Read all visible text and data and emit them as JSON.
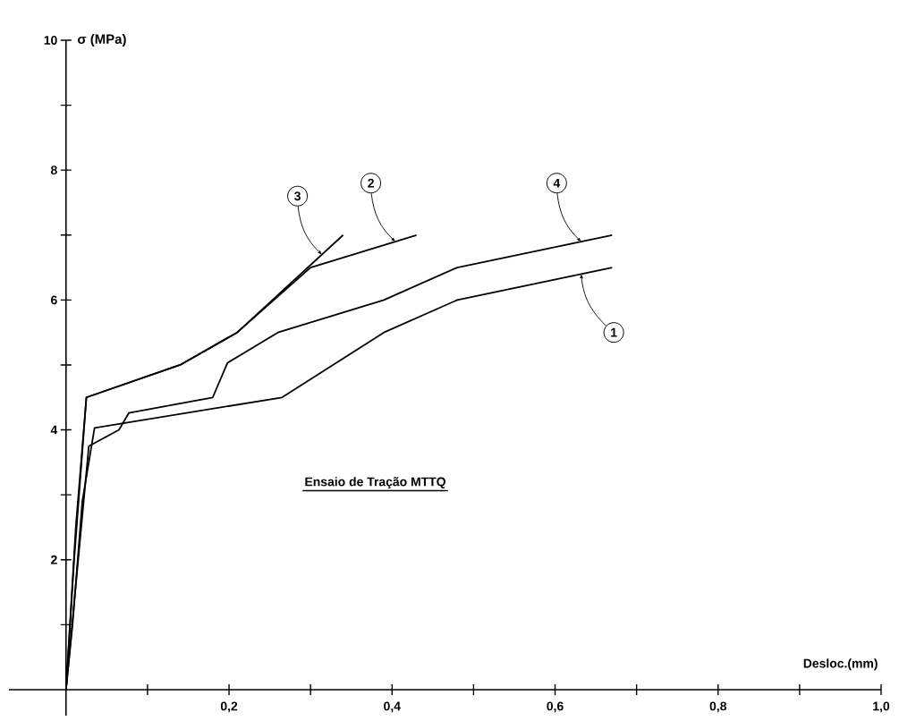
{
  "chart_data": {
    "type": "line",
    "xlabel": "Desloc.(mm)",
    "ylabel": "σ (MPa)",
    "annotations": [
      "Ensaio de Tração MTTQ"
    ],
    "xlim": [
      -0.07,
      1.0
    ],
    "ylim": [
      -0.4,
      10
    ],
    "xticks": [
      {
        "value": 0.1,
        "label": null
      },
      {
        "value": 0.2,
        "label": "0,2"
      },
      {
        "value": 0.3,
        "label": null
      },
      {
        "value": 0.4,
        "label": "0,4"
      },
      {
        "value": 0.5,
        "label": null
      },
      {
        "value": 0.6,
        "label": "0,6"
      },
      {
        "value": 0.7,
        "label": null
      },
      {
        "value": 0.8,
        "label": "0,8"
      },
      {
        "value": 0.9,
        "label": null
      },
      {
        "value": 1.0,
        "label": "1,0"
      }
    ],
    "yticks": [
      {
        "value": 1,
        "label": null
      },
      2,
      {
        "value": 3,
        "label": null
      },
      4,
      {
        "value": 5,
        "label": null
      },
      6,
      {
        "value": 7,
        "label": null
      },
      8,
      {
        "value": 9,
        "label": null
      },
      10
    ],
    "grid": false,
    "legend": "top right",
    "marker": "none",
    "line_style": "solid",
    "series": [
      {
        "name": "1",
        "color": "#000000",
        "x": [
          0,
          0.008,
          0.02,
          0.035,
          0.265,
          0.39,
          0.48,
          0.67
        ],
        "values": [
          0,
          1.0,
          2.9,
          4.03,
          4.5,
          5.5,
          6.0,
          6.5
        ]
      },
      {
        "name": "2",
        "color": "#000000",
        "x": [
          0,
          0.01,
          0.025,
          0.14,
          0.21,
          0.3,
          0.43
        ],
        "values": [
          0,
          2.0,
          4.5,
          5.0,
          5.5,
          6.5,
          7.0
        ]
      },
      {
        "name": "3",
        "color": "#000000",
        "x": [
          0,
          0.012,
          0.025,
          0.14,
          0.21,
          0.34
        ],
        "values": [
          0,
          2.5,
          4.5,
          5.0,
          5.5,
          7.0
        ]
      },
      {
        "name": "4",
        "color": "#000000",
        "x": [
          0,
          0.006,
          0.028,
          0.065,
          0.077,
          0.18,
          0.198,
          0.26,
          0.39,
          0.48,
          0.67
        ],
        "values": [
          0,
          0.8,
          3.75,
          4.0,
          4.26,
          4.5,
          5.03,
          5.5,
          6.0,
          6.5,
          7.0
        ]
      }
    ]
  }
}
